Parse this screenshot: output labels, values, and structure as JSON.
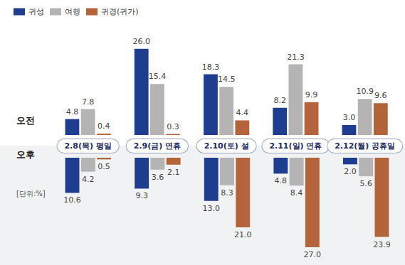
{
  "chart_data": [
    {
      "type": "bar",
      "title": "오전",
      "categories": [
        "2.8(목) 평일",
        "2.9(금) 연휴",
        "2.10(토) 설",
        "2.11(일) 연휴",
        "2.12(월) 공휴일"
      ],
      "series": [
        {
          "name": "귀성",
          "color": "#1f3d8f",
          "values": [
            4.8,
            26.0,
            18.3,
            8.2,
            3.0
          ],
          "value_labels": [
            "4.8",
            "26.0",
            "18.3",
            "8.2",
            "3.0"
          ]
        },
        {
          "name": "여행",
          "color": "#b4b4b4",
          "values": [
            7.8,
            15.4,
            14.5,
            21.3,
            10.9
          ],
          "value_labels": [
            "7.8",
            "15.4",
            "14.5",
            "21.3",
            "10.9"
          ]
        },
        {
          "name": "귀경(귀가)",
          "color": "#b4643a",
          "values": [
            0.4,
            0.3,
            4.4,
            9.9,
            9.6
          ],
          "value_labels": [
            "0.4",
            "0.3",
            "4.4",
            "9.9",
            "9.6"
          ]
        }
      ],
      "ylim": [
        0,
        30
      ],
      "yticks": [
        0,
        10,
        20,
        30
      ],
      "grid": false,
      "data_labels": true,
      "tick_labels": "x",
      "legend": "top-left"
    },
    {
      "type": "bar",
      "title": "오후",
      "categories": [
        "2.8(목) 평일",
        "2.9(금) 연휴",
        "2.10(토) 설",
        "2.11(일) 연휴",
        "2.12(월) 공휴일"
      ],
      "series": [
        {
          "name": "귀성",
          "color": "#1f3d8f",
          "values": [
            10.6,
            9.3,
            13.0,
            4.8,
            2.0
          ],
          "value_labels": [
            "10.6",
            "9.3",
            "13.0",
            "4.8",
            "2.0"
          ]
        },
        {
          "name": "여행",
          "color": "#b4b4b4",
          "values": [
            4.2,
            3.6,
            8.3,
            8.4,
            5.6
          ],
          "value_labels": [
            "4.2",
            "3.6",
            "8.3",
            "8.4",
            "5.6"
          ]
        },
        {
          "name": "귀경(귀가)",
          "color": "#b4643a",
          "values": [
            0.5,
            2.1,
            21.0,
            27.0,
            23.9
          ],
          "value_labels": [
            "0.5",
            "2.1",
            "21.0",
            "27.0",
            "23.9"
          ]
        }
      ],
      "ylim": [
        0,
        30
      ],
      "yticks": [
        0,
        10,
        20,
        30
      ],
      "grid": false,
      "data_labels": true,
      "tick_labels": false,
      "annotations": [
        "[단위:%]"
      ]
    }
  ]
}
